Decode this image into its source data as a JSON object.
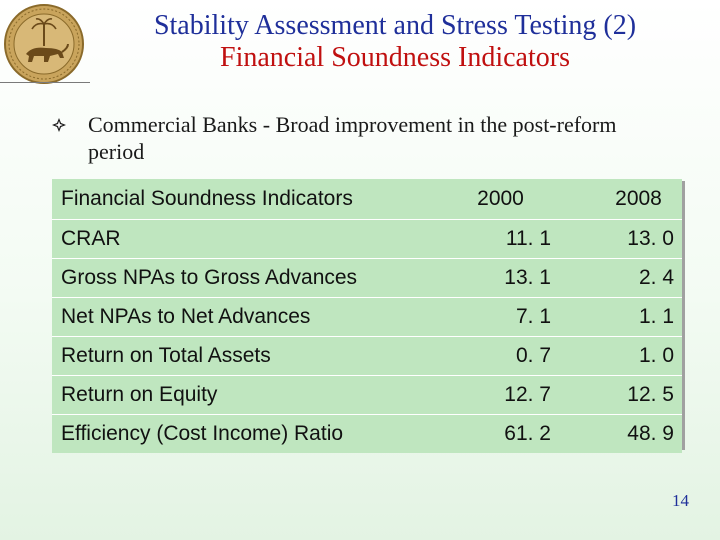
{
  "title": {
    "line1": "Stability Assessment and Stress Testing (2)",
    "line2": "Financial Soundness Indicators"
  },
  "bullet_text": "Commercial Banks - Broad improvement in the post-reform period",
  "table": {
    "headers": [
      "Financial Soundness Indicators",
      "2000",
      "2008"
    ],
    "rows": [
      {
        "label": "CRAR",
        "v2000": "11. 1",
        "v2008": "13. 0"
      },
      {
        "label": "Gross NPAs to Gross Advances",
        "v2000": "13. 1",
        "v2008": "2. 4"
      },
      {
        "label": "Net NPAs to Net Advances",
        "v2000": "7. 1",
        "v2008": "1. 1"
      },
      {
        "label": "Return on Total Assets",
        "v2000": "0. 7",
        "v2008": "1. 0"
      },
      {
        "label": "Return on Equity",
        "v2000": "12. 7",
        "v2008": "12. 5"
      },
      {
        "label": "Efficiency (Cost Income) Ratio",
        "v2000": "61. 2",
        "v2008": "48. 9"
      }
    ]
  },
  "page_number": "14",
  "colors": {
    "title_line1": "#1f2f9a",
    "title_line2": "#c01010",
    "table_fill": "#bfe6bf"
  },
  "icons": {
    "logo": "rbi-emblem-logo",
    "bullet": "diamond-bullet-icon"
  }
}
